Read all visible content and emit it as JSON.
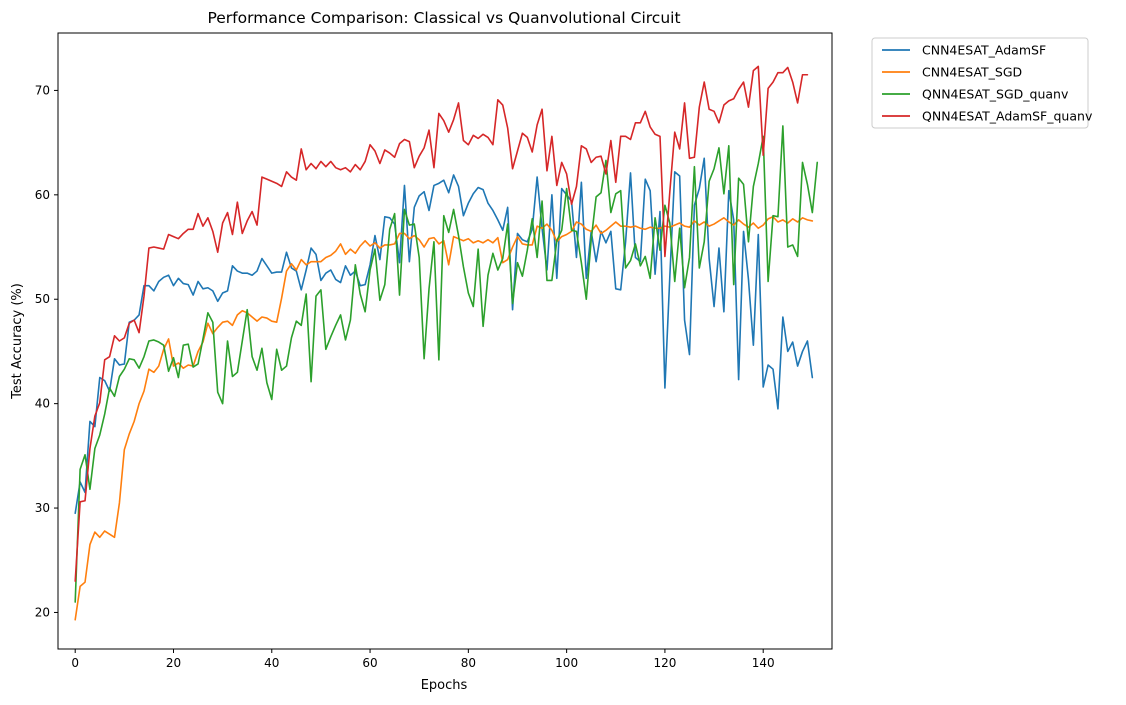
{
  "chart_data": {
    "type": "line",
    "title": "Performance Comparison: Classical vs Quanvolutional Circuit",
    "xlabel": "Epochs",
    "ylabel": "Test Accuracy (%)",
    "xlim": [
      -3.5,
      154
    ],
    "ylim": [
      16.5,
      75.5
    ],
    "xticks": [
      0,
      20,
      40,
      60,
      80,
      100,
      120,
      140
    ],
    "yticks": [
      20,
      30,
      40,
      50,
      60,
      70
    ],
    "grid": false,
    "legend_position": "outside-top-right",
    "series": [
      {
        "name": "CNN4ESAT_AdamSF",
        "color": "#1f77b4",
        "values": [
          29.5,
          32.5,
          31.5,
          38.3,
          37.8,
          42.5,
          42.2,
          41.2,
          44.3,
          43.7,
          43.8,
          47.8,
          48.0,
          48.5,
          51.3,
          51.3,
          50.8,
          51.7,
          52.1,
          52.3,
          51.3,
          52.0,
          51.5,
          51.4,
          50.4,
          51.7,
          51.0,
          51.1,
          50.8,
          49.8,
          50.6,
          50.8,
          53.2,
          52.7,
          52.5,
          52.5,
          52.3,
          52.7,
          53.9,
          53.2,
          52.5,
          52.6,
          52.6,
          54.5,
          53.0,
          52.7,
          50.9,
          52.8,
          54.9,
          54.3,
          51.8,
          52.5,
          52.8,
          51.9,
          51.6,
          53.2,
          52.3,
          52.7,
          51.3,
          51.4,
          53.3,
          56.1,
          53.8,
          57.9,
          57.8,
          57.2,
          53.5,
          60.9,
          53.6,
          58.8,
          59.9,
          60.3,
          58.5,
          60.9,
          61.1,
          61.4,
          60.2,
          61.9,
          60.8,
          58.0,
          59.2,
          60.1,
          60.7,
          60.5,
          59.2,
          58.5,
          57.6,
          56.6,
          58.8,
          49.0,
          56.3,
          55.7,
          55.5,
          56.7,
          61.7,
          56.8,
          52.8,
          60.0,
          52.0,
          60.6,
          60.0,
          59.4,
          54.0,
          61.2,
          52.0,
          56.5,
          53.6,
          56.5,
          55.4,
          56.5,
          51.0,
          50.9,
          55.5,
          62.1,
          54.0,
          53.6,
          61.5,
          60.4,
          52.4,
          58.4,
          41.5,
          52.2,
          62.2,
          61.8,
          48.0,
          44.7,
          59.0,
          60.6,
          63.5,
          53.9,
          49.3,
          54.9,
          48.8,
          60.4,
          57.6,
          42.3,
          56.5,
          51.9,
          45.6,
          56.2,
          41.6,
          43.7,
          43.3,
          39.5,
          48.3,
          45.0,
          45.9,
          43.6,
          45.0,
          46.0,
          42.5
        ],
        "_note_unused": ""
      },
      {
        "name": "CNN4ESAT_SGD",
        "color": "#ff7f0e",
        "values": [
          19.3,
          22.5,
          22.9,
          26.5,
          27.7,
          27.2,
          27.8,
          27.5,
          27.2,
          30.5,
          35.6,
          37.1,
          38.3,
          40.0,
          41.2,
          43.3,
          43.0,
          43.6,
          45.2,
          46.2,
          43.6,
          43.9,
          43.4,
          43.7,
          43.6,
          45.0,
          45.9,
          47.7,
          46.7,
          47.3,
          47.8,
          47.9,
          47.5,
          48.5,
          48.9,
          48.7,
          48.3,
          47.9,
          48.3,
          48.2,
          47.9,
          47.8,
          50.1,
          52.7,
          53.4,
          52.8,
          53.8,
          53.3,
          53.6,
          53.6,
          53.6,
          54.0,
          54.2,
          54.6,
          55.3,
          54.3,
          54.8,
          54.4,
          55.1,
          55.6,
          55.1,
          55.4,
          54.9,
          55.2,
          55.2,
          55.3,
          56.3,
          56.3,
          55.8,
          56.1,
          55.7,
          55.0,
          55.8,
          55.9,
          55.3,
          55.6,
          53.3,
          56.0,
          55.8,
          55.6,
          55.8,
          55.4,
          55.6,
          55.4,
          55.7,
          55.4,
          55.9,
          53.5,
          53.8,
          55.0,
          56.0,
          55.3,
          55.2,
          55.2,
          57.0,
          56.8,
          57.2,
          56.6,
          55.5,
          56.0,
          56.2,
          56.5,
          57.4,
          57.2,
          56.7,
          56.5,
          57.1,
          56.3,
          56.6,
          57.0,
          57.4,
          57.0,
          57.0,
          56.9,
          57.0,
          56.8,
          56.7,
          56.9,
          56.8,
          56.8,
          57.0,
          56.9,
          57.1,
          57.3,
          57.0,
          56.9,
          57.5,
          57.1,
          57.4,
          57.0,
          57.2,
          57.5,
          57.8,
          57.4,
          57.1,
          57.6,
          57.2,
          56.9,
          57.3,
          56.8,
          57.1,
          57.7,
          57.9,
          57.4,
          57.6,
          57.3,
          57.7,
          57.4,
          57.8,
          57.6,
          57.5
        ],
        "_note_unused": ""
      },
      {
        "name": "QNN4ESAT_SGD_quanv",
        "color": "#2ca02c",
        "values": [
          21.0,
          33.7,
          35.1,
          31.8,
          35.7,
          37.0,
          39.0,
          41.5,
          40.7,
          42.6,
          43.3,
          44.3,
          44.2,
          43.4,
          44.5,
          46.0,
          46.1,
          45.9,
          45.6,
          43.1,
          44.4,
          42.5,
          45.6,
          45.7,
          43.5,
          43.8,
          46.2,
          48.7,
          47.8,
          41.1,
          40.0,
          46.0,
          42.6,
          43.0,
          46.0,
          49.0,
          44.5,
          43.2,
          45.3,
          42.0,
          40.4,
          45.2,
          43.2,
          43.6,
          46.3,
          47.9,
          47.5,
          50.5,
          42.1,
          50.3,
          50.9,
          45.2,
          46.4,
          47.5,
          48.5,
          46.1,
          48.0,
          53.3,
          50.5,
          48.8,
          52.8,
          54.8,
          49.9,
          51.4,
          56.7,
          58.2,
          50.4,
          58.6,
          57.1,
          57.2,
          54.0,
          44.3,
          51.0,
          55.5,
          44.2,
          58.0,
          56.4,
          58.6,
          56.1,
          53.1,
          50.6,
          49.3,
          54.8,
          47.4,
          52.3,
          54.4,
          52.8,
          53.9,
          57.2,
          49.6,
          53.5,
          52.2,
          54.7,
          57.7,
          54.0,
          59.4,
          51.8,
          51.8,
          55.6,
          56.6,
          60.6,
          56.6,
          56.5,
          53.5,
          50.0,
          55.7,
          59.8,
          60.2,
          63.3,
          58.3,
          60.1,
          60.4,
          53.0,
          53.7,
          55.3,
          53.2,
          54.1,
          52.0,
          57.8,
          54.7,
          59.0,
          57.3,
          51.7,
          56.8,
          51.1,
          54.0,
          62.7,
          53.0,
          55.5,
          61.3,
          62.5,
          64.5,
          60.1,
          64.7,
          51.4,
          61.6,
          61.0,
          55.5,
          60.8,
          63.0,
          65.6,
          51.7,
          58.0,
          57.9,
          66.6,
          55.0,
          55.2,
          54.1,
          63.1,
          61.0,
          58.3,
          63.1
        ]
      },
      {
        "name": "QNN4ESAT_AdamSF_quanv",
        "color": "#d62728",
        "values": [
          23.0,
          30.6,
          30.7,
          35.7,
          38.8,
          40.1,
          44.2,
          44.5,
          46.5,
          46.0,
          46.3,
          47.7,
          48.0,
          46.8,
          50.3,
          54.9,
          55.0,
          54.9,
          54.8,
          56.2,
          56.0,
          55.8,
          56.3,
          56.7,
          56.7,
          58.2,
          57.0,
          57.8,
          56.5,
          54.5,
          57.3,
          58.3,
          56.2,
          59.3,
          56.3,
          57.5,
          58.4,
          57.1,
          61.7,
          61.5,
          61.3,
          61.1,
          60.8,
          62.2,
          61.7,
          61.4,
          64.4,
          62.4,
          63.0,
          62.5,
          63.2,
          62.7,
          63.2,
          62.6,
          62.4,
          62.6,
          62.2,
          62.9,
          62.4,
          63.2,
          64.8,
          64.2,
          63.0,
          64.3,
          64.0,
          63.6,
          64.9,
          65.3,
          65.1,
          62.6,
          63.7,
          64.5,
          66.2,
          62.6,
          67.8,
          67.1,
          66.0,
          67.2,
          68.8,
          65.2,
          64.8,
          65.7,
          65.4,
          65.8,
          65.5,
          64.8,
          69.1,
          68.6,
          66.4,
          62.5,
          64.2,
          65.9,
          65.5,
          64.1,
          66.7,
          68.2,
          62.3,
          65.6,
          60.9,
          63.1,
          62.0,
          59.1,
          60.8,
          64.7,
          64.4,
          63.1,
          63.6,
          63.7,
          62.0,
          65.2,
          61.2,
          65.6,
          65.6,
          65.3,
          66.9,
          66.9,
          68.0,
          66.5,
          65.8,
          65.6,
          54.1,
          60.3,
          66.0,
          64.4,
          68.8,
          63.5,
          63.6,
          68.4,
          70.8,
          68.2,
          68.0,
          66.9,
          68.6,
          69.0,
          69.2,
          70.1,
          70.8,
          68.4,
          71.9,
          72.3,
          63.8,
          70.2,
          70.8,
          71.7,
          71.7,
          72.2,
          70.8,
          68.8,
          71.5,
          71.5
        ]
      }
    ]
  }
}
